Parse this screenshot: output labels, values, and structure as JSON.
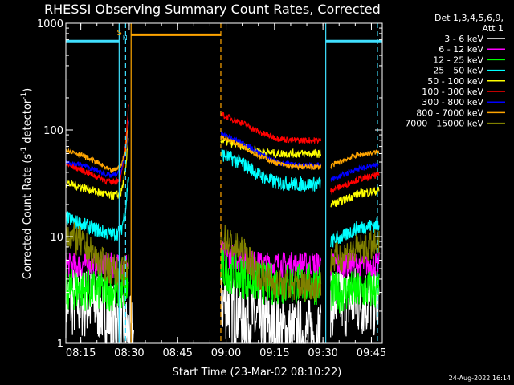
{
  "chart_data": {
    "type": "line",
    "title": "RHESSI Observing Summary Count Rates, Corrected",
    "xlabel": "Start Time (23-Mar-02 08:10:22)",
    "ylabel_main": "Corrected Count Rate (s",
    "ylabel_sup1": "-1",
    "ylabel_mid": " detector",
    "ylabel_sup2": "-1",
    "ylabel_end": ")",
    "yscale": "log",
    "ylim": [
      1,
      1000
    ],
    "xlim_minutes": [
      0,
      98
    ],
    "x_ticks": [
      {
        "m": 4.63,
        "label": "08:15"
      },
      {
        "m": 19.63,
        "label": "08:30"
      },
      {
        "m": 34.63,
        "label": "08:45"
      },
      {
        "m": 49.63,
        "label": "09:00"
      },
      {
        "m": 64.63,
        "label": "09:15"
      },
      {
        "m": 79.63,
        "label": "09:30"
      },
      {
        "m": 94.63,
        "label": "09:45"
      }
    ],
    "y_ticks": [
      {
        "v": 1,
        "label": "1"
      },
      {
        "v": 10,
        "label": "10"
      },
      {
        "v": 100,
        "label": "100"
      },
      {
        "v": 1000,
        "label": "1000"
      }
    ],
    "legend_header": [
      "Det 1,3,4,5,6,9,",
      "Att 1"
    ],
    "date_stamp": "24-Aug-2022 16:14",
    "flags": [
      {
        "text": "S",
        "color": "#ffa500"
      },
      {
        "text": "N",
        "color": "#40e0ff"
      }
    ],
    "series": [
      {
        "name": "3 - 6 keV",
        "color": "#ffffff",
        "noise": 0.35,
        "segs": [
          [
            [
              0,
              2.5
            ],
            [
              10,
              2.3
            ],
            [
              14,
              1.8
            ],
            [
              17,
              1.4
            ],
            [
              21,
              1.2
            ]
          ],
          [
            [
              48,
              2.5
            ],
            [
              56,
              1.8
            ],
            [
              62,
              1.4
            ],
            [
              70,
              1.2
            ],
            [
              76,
              1.2
            ],
            [
              79,
              1.2
            ]
          ],
          [
            [
              82,
              2.5
            ],
            [
              90,
              2.5
            ],
            [
              97,
              2.5
            ]
          ]
        ]
      },
      {
        "name": "6 - 12 keV",
        "color": "#ff00ff",
        "noise": 0.12,
        "segs": [
          [
            [
              0,
              5.4
            ],
            [
              18,
              5.4
            ],
            [
              19.5,
              5.6
            ]
          ],
          [
            [
              48,
              7
            ],
            [
              55,
              6
            ],
            [
              60,
              5.5
            ],
            [
              79,
              5.5
            ]
          ],
          [
            [
              82,
              5.5
            ],
            [
              97,
              5.5
            ]
          ]
        ]
      },
      {
        "name": "12 - 25 keV",
        "color": "#00ff00",
        "noise": 0.2,
        "segs": [
          [
            [
              0,
              3.2
            ],
            [
              18,
              3.1
            ],
            [
              19.5,
              3.3
            ]
          ],
          [
            [
              48,
              5
            ],
            [
              56,
              4
            ],
            [
              62,
              3.6
            ],
            [
              79,
              3.6
            ]
          ],
          [
            [
              82,
              3
            ],
            [
              97,
              3.2
            ]
          ]
        ]
      },
      {
        "name": "25 - 50 keV",
        "color": "#00ffff",
        "noise": 0.07,
        "segs": [
          [
            [
              0,
              15
            ],
            [
              5,
              13
            ],
            [
              10,
              11.5
            ],
            [
              14,
              10.5
            ],
            [
              17,
              11
            ],
            [
              18.5,
              18
            ],
            [
              19.5,
              40
            ]
          ],
          [
            [
              48,
              60
            ],
            [
              55,
              48
            ],
            [
              60,
              38
            ],
            [
              65,
              32
            ],
            [
              72,
              31
            ],
            [
              79,
              31
            ]
          ],
          [
            [
              82,
              9
            ],
            [
              86,
              10
            ],
            [
              90,
              12
            ],
            [
              97,
              13
            ]
          ]
        ]
      },
      {
        "name": "50 - 100 keV",
        "color": "#ffff00",
        "noise": 0.04,
        "segs": [
          [
            [
              0,
              32
            ],
            [
              5,
              29
            ],
            [
              10,
              26
            ],
            [
              14,
              24
            ],
            [
              17,
              25
            ],
            [
              18.5,
              40
            ],
            [
              19.5,
              95
            ]
          ],
          [
            [
              48,
              80
            ],
            [
              55,
              70
            ],
            [
              60,
              63
            ],
            [
              65,
              60
            ],
            [
              79,
              60
            ]
          ],
          [
            [
              82,
              20
            ],
            [
              86,
              22
            ],
            [
              90,
              25
            ],
            [
              97,
              27
            ]
          ]
        ]
      },
      {
        "name": "100 - 300 keV",
        "color": "#ff0000",
        "noise": 0.03,
        "segs": [
          [
            [
              0,
              48
            ],
            [
              5,
              42
            ],
            [
              10,
              36
            ],
            [
              14,
              32
            ],
            [
              17,
              35
            ],
            [
              18.5,
              70
            ],
            [
              19.5,
              190
            ]
          ],
          [
            [
              48,
              140
            ],
            [
              55,
              115
            ],
            [
              60,
              95
            ],
            [
              65,
              84
            ],
            [
              70,
              80
            ],
            [
              79,
              80
            ]
          ],
          [
            [
              82,
              27
            ],
            [
              86,
              30
            ],
            [
              90,
              34
            ],
            [
              97,
              38
            ]
          ]
        ]
      },
      {
        "name": "300 - 800 keV",
        "color": "#0000ff",
        "noise": 0.025,
        "segs": [
          [
            [
              0,
              50
            ],
            [
              5,
              47
            ],
            [
              10,
              41
            ],
            [
              14,
              37
            ],
            [
              17,
              40
            ],
            [
              18.5,
              60
            ],
            [
              19.5,
              120
            ]
          ],
          [
            [
              48,
              92
            ],
            [
              55,
              75
            ],
            [
              60,
              60
            ],
            [
              65,
              50
            ],
            [
              70,
              47
            ],
            [
              79,
              47
            ]
          ],
          [
            [
              82,
              34
            ],
            [
              86,
              38
            ],
            [
              90,
              43
            ],
            [
              97,
              47
            ]
          ]
        ]
      },
      {
        "name": "800 - 7000 keV",
        "color": "#ffa500",
        "noise": 0.025,
        "segs": [
          [
            [
              0,
              66
            ],
            [
              5,
              58
            ],
            [
              10,
              49
            ],
            [
              14,
              41
            ],
            [
              17,
              45
            ],
            [
              18.5,
              65
            ],
            [
              19.5,
              130
            ]
          ],
          [
            [
              48,
              87
            ],
            [
              55,
              70
            ],
            [
              60,
              57
            ],
            [
              65,
              49
            ],
            [
              70,
              45
            ],
            [
              79,
              45
            ]
          ],
          [
            [
              82,
              46
            ],
            [
              86,
              52
            ],
            [
              90,
              58
            ],
            [
              97,
              62
            ]
          ]
        ]
      },
      {
        "name": "7000 - 15000 keV",
        "color": "#808000",
        "noise": 0.15,
        "segs": [
          [
            [
              0,
              11
            ],
            [
              5,
              8.5
            ],
            [
              10,
              6
            ],
            [
              14,
              5
            ],
            [
              17,
              4.5
            ],
            [
              19.5,
              5
            ]
          ],
          [
            [
              48,
              10
            ],
            [
              55,
              7
            ],
            [
              60,
              4.5
            ],
            [
              65,
              3.5
            ],
            [
              79,
              3.5
            ]
          ],
          [
            [
              82,
              6
            ],
            [
              90,
              7.5
            ],
            [
              97,
              8.5
            ]
          ]
        ]
      }
    ],
    "markers": [
      {
        "m": 16.5,
        "color": "#40e0ff",
        "style": "solid"
      },
      {
        "m": 18.5,
        "color": "#40e0ff",
        "style": "dashed"
      },
      {
        "m": 20.2,
        "color": "#ffa500",
        "style": "solid"
      },
      {
        "m": 48.0,
        "color": "#ffa500",
        "style": "dashed"
      },
      {
        "m": 80.5,
        "color": "#40e0ff",
        "style": "solid"
      },
      {
        "m": 96.5,
        "color": "#40e0ff",
        "style": "dashed"
      }
    ],
    "overlays": [
      {
        "m0": 0,
        "m1": 16.5,
        "v": 680,
        "color": "#40e0ff"
      },
      {
        "m0": 20.2,
        "m1": 48.0,
        "v": 780,
        "color": "#ffa500"
      },
      {
        "m0": 80.5,
        "m1": 98,
        "v": 680,
        "color": "#40e0ff"
      }
    ]
  }
}
